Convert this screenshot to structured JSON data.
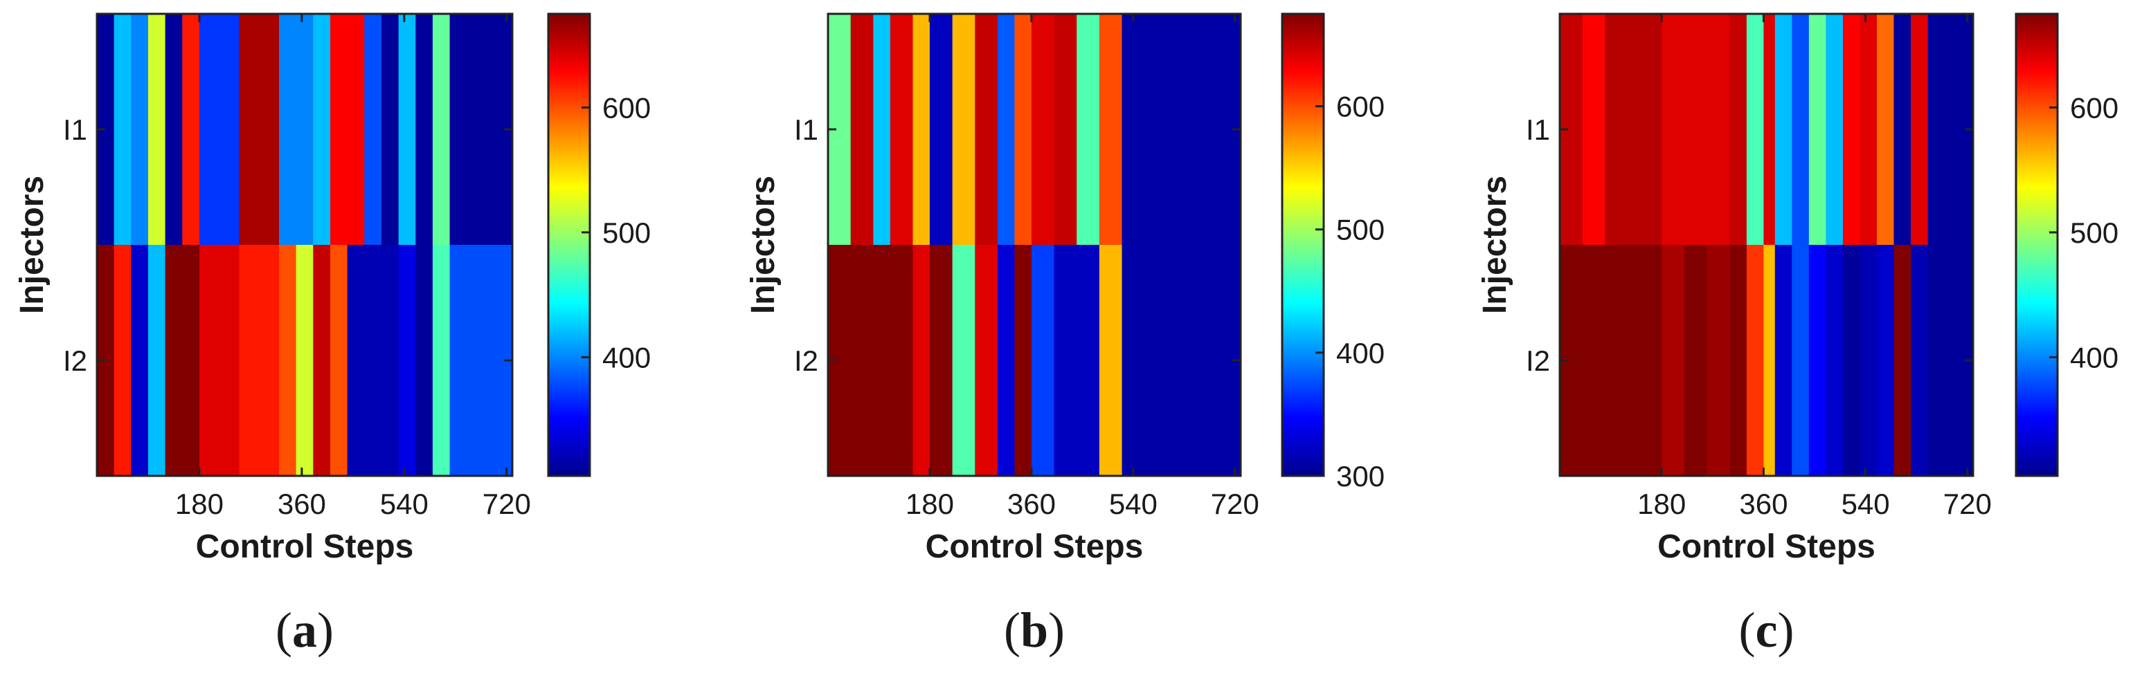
{
  "panels": [
    {
      "letter": "a",
      "x_label": "Control Steps",
      "y_label": "Injectors",
      "x_ticks": [
        180,
        360,
        540,
        720
      ],
      "y_ticks": [
        "I1",
        "I2"
      ],
      "colorbar_ticks": [
        400,
        500,
        600
      ],
      "clim": [
        305,
        675
      ],
      "chart_data": {
        "type": "heatmap",
        "xlabel": "Control Steps",
        "ylabel": "Injectors",
        "x_range": [
          0,
          730
        ],
        "rows": [
          "I1",
          "I2"
        ],
        "column_edges": [
          0,
          30,
          60,
          90,
          120,
          150,
          180,
          210,
          250,
          320,
          350,
          380,
          410,
          440,
          470,
          500,
          530,
          560,
          590,
          620,
          650,
          680,
          730
        ],
        "values": [
          [
            310,
            420,
            400,
            520,
            310,
            620,
            370,
            370,
            660,
            400,
            400,
            420,
            630,
            630,
            380,
            310,
            420,
            310,
            480,
            310,
            310,
            310
          ],
          [
            675,
            620,
            330,
            420,
            675,
            675,
            640,
            640,
            620,
            600,
            520,
            650,
            600,
            320,
            320,
            320,
            340,
            310,
            470,
            380,
            380,
            380
          ]
        ],
        "colorbar_ticks": [
          400,
          500,
          600
        ],
        "colormap": "jet"
      }
    },
    {
      "letter": "b",
      "x_label": "Control Steps",
      "y_label": "Injectors",
      "x_ticks": [
        180,
        360,
        540,
        720
      ],
      "y_ticks": [
        "I1",
        "I2"
      ],
      "colorbar_ticks": [
        300,
        400,
        500,
        600
      ],
      "clim": [
        300,
        675
      ],
      "chart_data": {
        "type": "heatmap",
        "xlabel": "Control Steps",
        "ylabel": "Injectors",
        "x_range": [
          0,
          730
        ],
        "rows": [
          "I1",
          "I2"
        ],
        "column_edges": [
          0,
          40,
          80,
          110,
          150,
          180,
          220,
          260,
          300,
          330,
          360,
          400,
          440,
          480,
          520,
          560,
          600,
          640,
          730
        ],
        "values": [
          [
            480,
            650,
            420,
            640,
            560,
            320,
            560,
            650,
            380,
            600,
            640,
            650,
            470,
            600,
            310,
            310,
            310,
            310
          ],
          [
            675,
            675,
            675,
            675,
            640,
            675,
            470,
            640,
            330,
            675,
            370,
            320,
            320,
            560,
            310,
            310,
            310,
            310
          ]
        ],
        "colorbar_ticks": [
          300,
          400,
          500,
          600
        ],
        "colormap": "jet"
      }
    },
    {
      "letter": "c",
      "x_label": "Control Steps",
      "y_label": "Injectors",
      "x_ticks": [
        180,
        360,
        540,
        720
      ],
      "y_ticks": [
        "I1",
        "I2"
      ],
      "colorbar_ticks": [
        400,
        500,
        600
      ],
      "clim": [
        305,
        675
      ],
      "chart_data": {
        "type": "heatmap",
        "xlabel": "Control Steps",
        "ylabel": "Injectors",
        "x_range": [
          0,
          730
        ],
        "rows": [
          "I1",
          "I2"
        ],
        "column_edges": [
          0,
          40,
          80,
          180,
          220,
          260,
          300,
          330,
          360,
          380,
          410,
          440,
          470,
          500,
          530,
          560,
          590,
          620,
          650,
          680,
          730
        ],
        "values": [
          [
            650,
            630,
            655,
            640,
            640,
            640,
            650,
            470,
            640,
            420,
            380,
            480,
            420,
            630,
            640,
            590,
            310,
            640,
            310,
            310
          ],
          [
            675,
            675,
            675,
            660,
            675,
            665,
            675,
            610,
            560,
            330,
            380,
            350,
            330,
            310,
            320,
            330,
            675,
            320,
            310,
            310
          ]
        ],
        "colorbar_ticks": [
          400,
          500,
          600
        ],
        "colormap": "jet"
      }
    }
  ]
}
